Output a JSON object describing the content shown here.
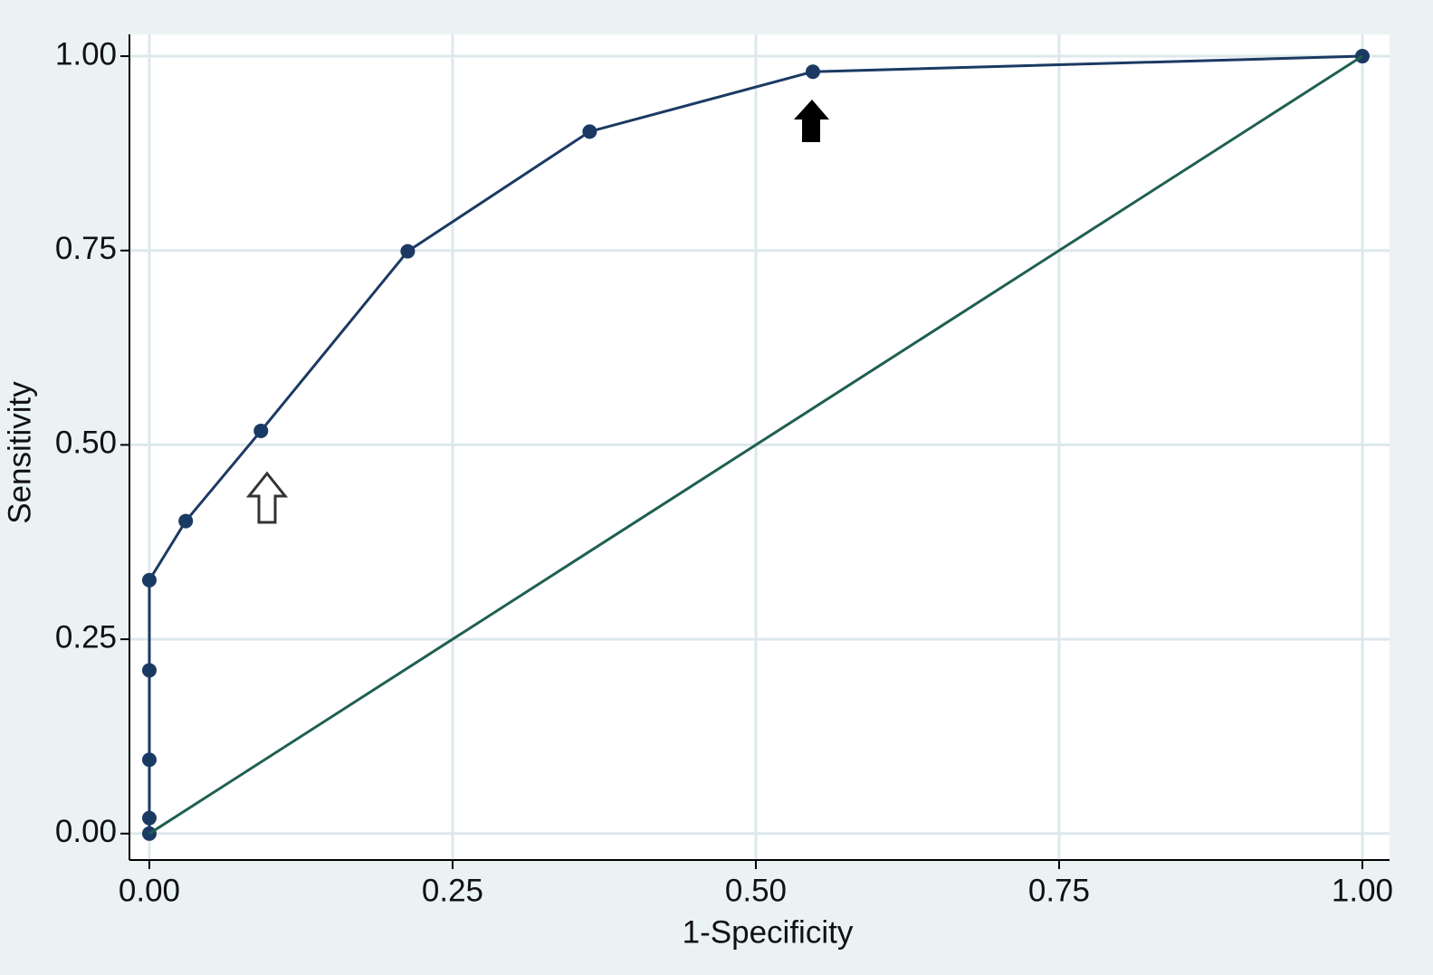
{
  "chart_data": {
    "type": "line",
    "x_label": "1-Specificity",
    "y_label": "Sensitivity",
    "series": [
      {
        "color": "#1b3a63",
        "marker": true,
        "x": [
          0,
          0,
          0,
          0,
          0,
          0.03,
          0.092,
          0.213,
          0.363,
          0.547,
          1
        ],
        "values": [
          0,
          0.02,
          0.095,
          0.21,
          0.326,
          0.402,
          0.518,
          0.749,
          0.903,
          0.98,
          1
        ]
      },
      {
        "color": "#1f5f52",
        "marker": false,
        "x": [
          0,
          1
        ],
        "values": [
          0,
          1
        ]
      }
    ],
    "xlim": [
      -0.0164,
      1.0224
    ],
    "ylim": [
      -0.034,
      1.028
    ],
    "xticks": [
      {
        "value": 0,
        "label": "0.00"
      },
      0.25,
      {
        "value": 0.5,
        "label": "0.50"
      },
      0.75,
      {
        "value": 1,
        "label": "1.00"
      }
    ],
    "yticks": [
      {
        "value": 0,
        "label": "0.00"
      },
      0.25,
      {
        "value": 0.5,
        "label": "0.50"
      },
      0.75,
      {
        "value": 1,
        "label": "1.00"
      }
    ],
    "grid": true
  }
}
